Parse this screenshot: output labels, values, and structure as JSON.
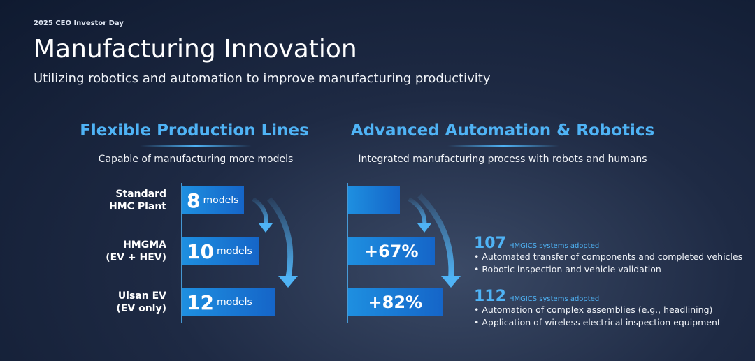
{
  "header": {
    "event": "2025 CEO Investor Day",
    "title": "Manufacturing Innovation",
    "subtitle": "Utilizing robotics and automation to improve manufacturing productivity"
  },
  "left": {
    "title": "Flexible Production Lines",
    "subtitle": "Capable of manufacturing more models",
    "unit": "models",
    "rows": [
      {
        "label": [
          "Standard",
          "HMC Plant"
        ],
        "value": 8
      },
      {
        "label": [
          "HMGMA",
          "(EV + HEV)"
        ],
        "value": 10
      },
      {
        "label": [
          "Ulsan EV",
          "(EV only)"
        ],
        "value": 12
      }
    ]
  },
  "right": {
    "title": "Advanced Automation & Robotics",
    "subtitle": "Integrated manufacturing process with robots and humans",
    "values": [
      0,
      67,
      82
    ],
    "value_labels": [
      null,
      "+67%",
      "+82%"
    ],
    "notes": [
      {
        "count": 107,
        "caption": "HMGICS systems adopted",
        "bullets": [
          "Automated transfer of components and completed vehicles",
          "Robotic inspection and vehicle validation"
        ]
      },
      {
        "count": 112,
        "caption": "HMGICS systems adopted",
        "bullets": [
          "Automation of complex assemblies (e.g., headlining)",
          "Application of wireless electrical inspection equipment"
        ]
      }
    ]
  }
}
